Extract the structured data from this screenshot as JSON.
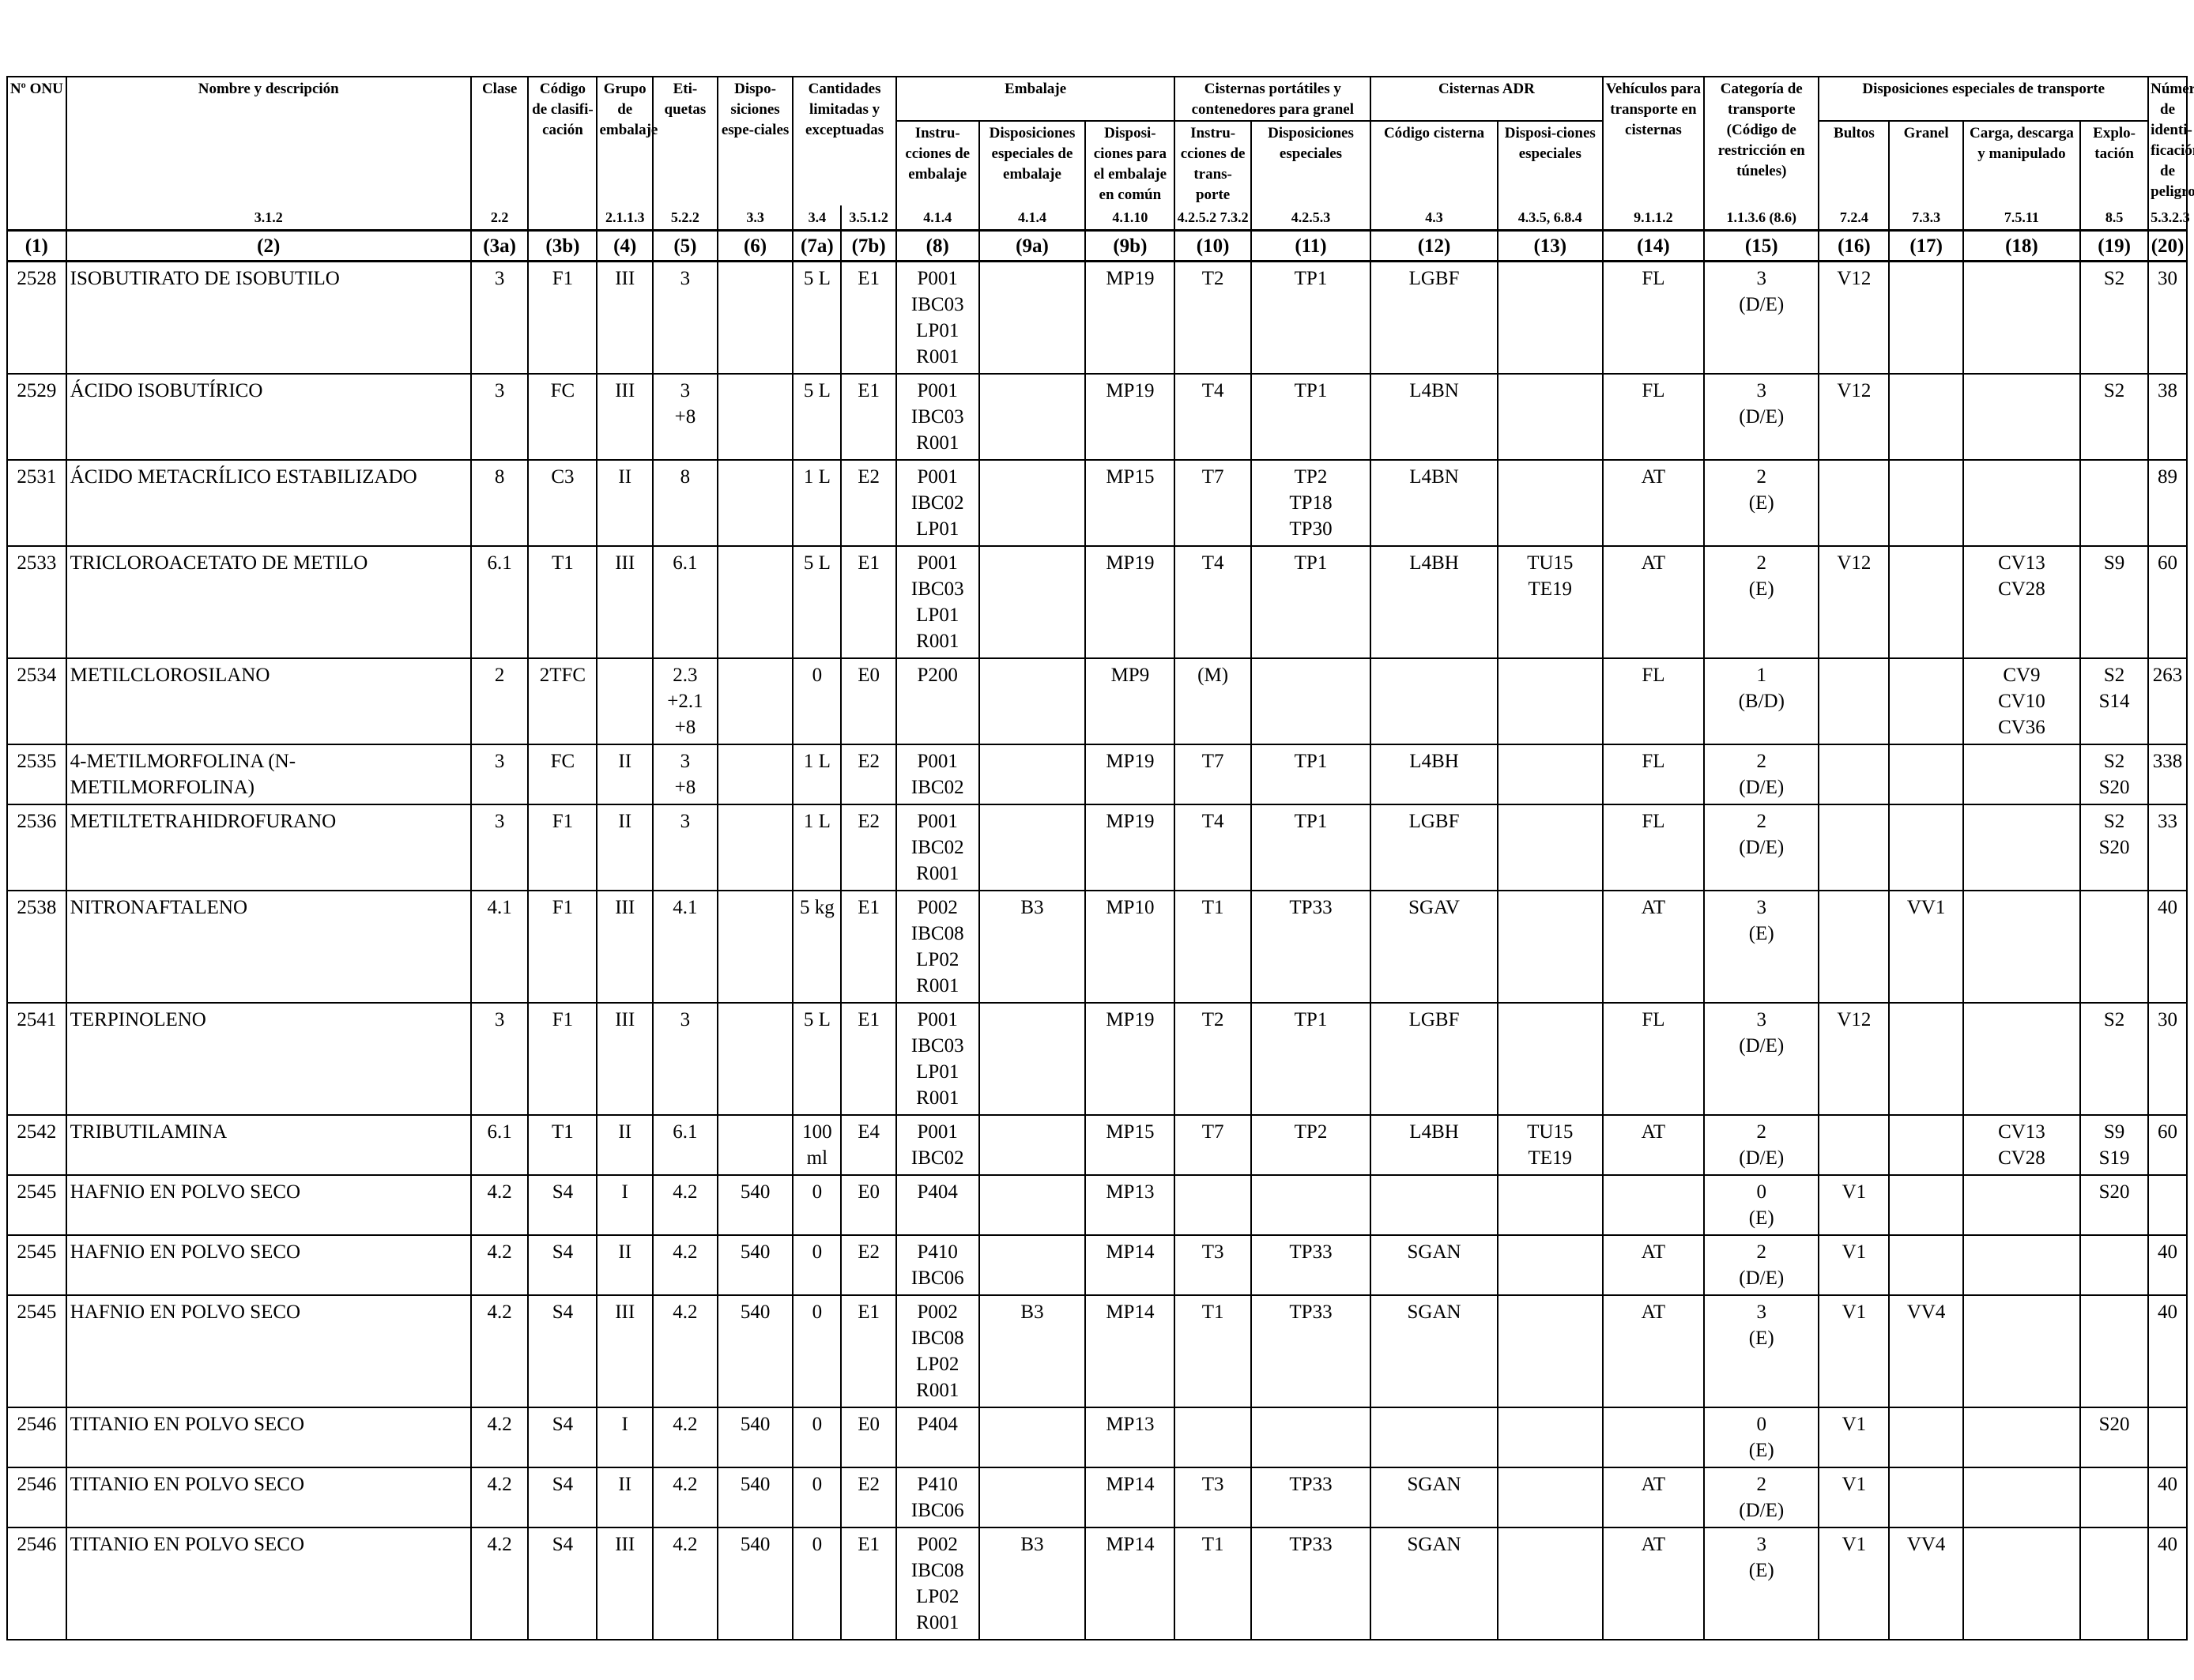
{
  "header": {
    "onu": "Nº ONU",
    "name": "Nombre y descripción",
    "clase": "Clase",
    "codigo": "Código de clasifi-cación",
    "grupo": "Grupo de embalaje",
    "etiquetas": "Eti-quetas",
    "dispos": "Dispo-siciones espe-ciales",
    "cantidades": "Cantidades limitadas y exceptuadas",
    "embalaje": "Embalaje",
    "emb_instr": "Instru-cciones de embalaje",
    "emb_disp": "Disposiciones especiales de embalaje",
    "emb_comun": "Disposi-ciones para el embalaje en común",
    "cisternas_port": "Cisternas portátiles y contenedores para granel",
    "cp_instr": "Instru-cciones de trans-porte",
    "cp_disp": "Disposiciones especiales",
    "cisternas_adr": "Cisternas ADR",
    "adr_codigo": "Código cisterna",
    "adr_disp": "Disposi-ciones especiales",
    "vehiculos": "Vehículos para transporte en cisternas",
    "categoria": "Categoría de transporte (Código de restricción en túneles)",
    "disp_transporte": "Disposiciones especiales de transporte",
    "bultos": "Bultos",
    "granel": "Granel",
    "carga": "Carga, descarga y manipulado",
    "explotacion": "Explo-tación",
    "numero_peligro": "Número de identi-ficación de peligro"
  },
  "refs": [
    "",
    "3.1.2",
    "2.2",
    "",
    "2.1.1.3",
    "5.2.2",
    "3.3",
    "3.4",
    "3.5.1.2",
    "4.1.4",
    "4.1.4",
    "4.1.10",
    "4.2.5.2 7.3.2",
    "4.2.5.3",
    "4.3",
    "4.3.5, 6.8.4",
    "9.1.1.2",
    "1.1.3.6 (8.6)",
    "7.2.4",
    "7.3.3",
    "7.5.11",
    "8.5",
    "5.3.2.3"
  ],
  "colnums": [
    "(1)",
    "(2)",
    "(3a)",
    "(3b)",
    "(4)",
    "(5)",
    "(6)",
    "(7a)",
    "(7b)",
    "(8)",
    "(9a)",
    "(9b)",
    "(10)",
    "(11)",
    "(12)",
    "(13)",
    "(14)",
    "(15)",
    "(16)",
    "(17)",
    "(18)",
    "(19)",
    "(20)"
  ],
  "rows": [
    [
      "2528",
      "ISOBUTIRATO DE ISOBUTILO",
      "3",
      "F1",
      "III",
      "3",
      "",
      "5 L",
      "E1",
      "P001 IBC03 LP01 R001",
      "",
      "MP19",
      "T2",
      "TP1",
      "LGBF",
      "",
      "FL",
      "3 (D/E)",
      "V12",
      "",
      "",
      "S2",
      "30"
    ],
    [
      "2529",
      "ÁCIDO ISOBUTÍRICO",
      "3",
      "FC",
      "III",
      "3 +8",
      "",
      "5 L",
      "E1",
      "P001 IBC03 R001",
      "",
      "MP19",
      "T4",
      "TP1",
      "L4BN",
      "",
      "FL",
      "3 (D/E)",
      "V12",
      "",
      "",
      "S2",
      "38"
    ],
    [
      "2531",
      "ÁCIDO METACRÍLICO ESTABILIZADO",
      "8",
      "C3",
      "II",
      "8",
      "",
      "1 L",
      "E2",
      "P001 IBC02 LP01",
      "",
      "MP15",
      "T7",
      "TP2 TP18 TP30",
      "L4BN",
      "",
      "AT",
      "2 (E)",
      "",
      "",
      "",
      "",
      "89"
    ],
    [
      "2533",
      "TRICLOROACETATO DE METILO",
      "6.1",
      "T1",
      "III",
      "6.1",
      "",
      "5 L",
      "E1",
      "P001 IBC03 LP01 R001",
      "",
      "MP19",
      "T4",
      "TP1",
      "L4BH",
      "TU15 TE19",
      "AT",
      "2 (E)",
      "V12",
      "",
      "CV13 CV28",
      "S9",
      "60"
    ],
    [
      "2534",
      "METILCLOROSILANO",
      "2",
      "2TFC",
      "",
      "2.3 +2.1 +8",
      "",
      "0",
      "E0",
      "P200",
      "",
      "MP9",
      "(M)",
      "",
      "",
      "",
      "FL",
      "1 (B/D)",
      "",
      "",
      "CV9 CV10 CV36",
      "S2 S14",
      "263"
    ],
    [
      "2535",
      "4-METILMORFOLINA (N-METILMORFOLINA)",
      "3",
      "FC",
      "II",
      "3 +8",
      "",
      "1 L",
      "E2",
      "P001 IBC02",
      "",
      "MP19",
      "T7",
      "TP1",
      "L4BH",
      "",
      "FL",
      "2 (D/E)",
      "",
      "",
      "",
      "S2 S20",
      "338"
    ],
    [
      "2536",
      "METILTETRAHIDROFURANO",
      "3",
      "F1",
      "II",
      "3",
      "",
      "1 L",
      "E2",
      "P001 IBC02 R001",
      "",
      "MP19",
      "T4",
      "TP1",
      "LGBF",
      "",
      "FL",
      "2 (D/E)",
      "",
      "",
      "",
      "S2 S20",
      "33"
    ],
    [
      "2538",
      "NITRONAFTALENO",
      "4.1",
      "F1",
      "III",
      "4.1",
      "",
      "5 kg",
      "E1",
      "P002 IBC08 LP02 R001",
      "B3",
      "MP10",
      "T1",
      "TP33",
      "SGAV",
      "",
      "AT",
      "3 (E)",
      "",
      "VV1",
      "",
      "",
      "40"
    ],
    [
      "2541",
      "TERPINOLENO",
      "3",
      "F1",
      "III",
      "3",
      "",
      "5 L",
      "E1",
      "P001 IBC03 LP01 R001",
      "",
      "MP19",
      "T2",
      "TP1",
      "LGBF",
      "",
      "FL",
      "3 (D/E)",
      "V12",
      "",
      "",
      "S2",
      "30"
    ],
    [
      "2542",
      "TRIBUTILAMINA",
      "6.1",
      "T1",
      "II",
      "6.1",
      "",
      "100 ml",
      "E4",
      "P001 IBC02",
      "",
      "MP15",
      "T7",
      "TP2",
      "L4BH",
      "TU15 TE19",
      "AT",
      "2 (D/E)",
      "",
      "",
      "CV13 CV28",
      "S9 S19",
      "60"
    ],
    [
      "2545",
      "HAFNIO EN POLVO SECO",
      "4.2",
      "S4",
      "I",
      "4.2",
      "540",
      "0",
      "E0",
      "P404",
      "",
      "MP13",
      "",
      "",
      "",
      "",
      "",
      "0 (E)",
      "V1",
      "",
      "",
      "S20",
      ""
    ],
    [
      "2545",
      "HAFNIO EN POLVO SECO",
      "4.2",
      "S4",
      "II",
      "4.2",
      "540",
      "0",
      "E2",
      "P410 IBC06",
      "",
      "MP14",
      "T3",
      "TP33",
      "SGAN",
      "",
      "AT",
      "2 (D/E)",
      "V1",
      "",
      "",
      "",
      "40"
    ],
    [
      "2545",
      "HAFNIO EN POLVO SECO",
      "4.2",
      "S4",
      "III",
      "4.2",
      "540",
      "0",
      "E1",
      "P002 IBC08 LP02 R001",
      "B3",
      "MP14",
      "T1",
      "TP33",
      "SGAN",
      "",
      "AT",
      "3 (E)",
      "V1",
      "VV4",
      "",
      "",
      "40"
    ],
    [
      "2546",
      "TITANIO EN POLVO SECO",
      "4.2",
      "S4",
      "I",
      "4.2",
      "540",
      "0",
      "E0",
      "P404",
      "",
      "MP13",
      "",
      "",
      "",
      "",
      "",
      "0 (E)",
      "V1",
      "",
      "",
      "S20",
      ""
    ],
    [
      "2546",
      "TITANIO EN POLVO SECO",
      "4.2",
      "S4",
      "II",
      "4.2",
      "540",
      "0",
      "E2",
      "P410 IBC06",
      "",
      "MP14",
      "T3",
      "TP33",
      "SGAN",
      "",
      "AT",
      "2 (D/E)",
      "V1",
      "",
      "",
      "",
      "40"
    ],
    [
      "2546",
      "TITANIO EN POLVO SECO",
      "4.2",
      "S4",
      "III",
      "4.2",
      "540",
      "0",
      "E1",
      "P002 IBC08 LP02 R001",
      "B3",
      "MP14",
      "T1",
      "TP33",
      "SGAN",
      "",
      "AT",
      "3 (E)",
      "V1",
      "VV4",
      "",
      "",
      "40"
    ]
  ]
}
